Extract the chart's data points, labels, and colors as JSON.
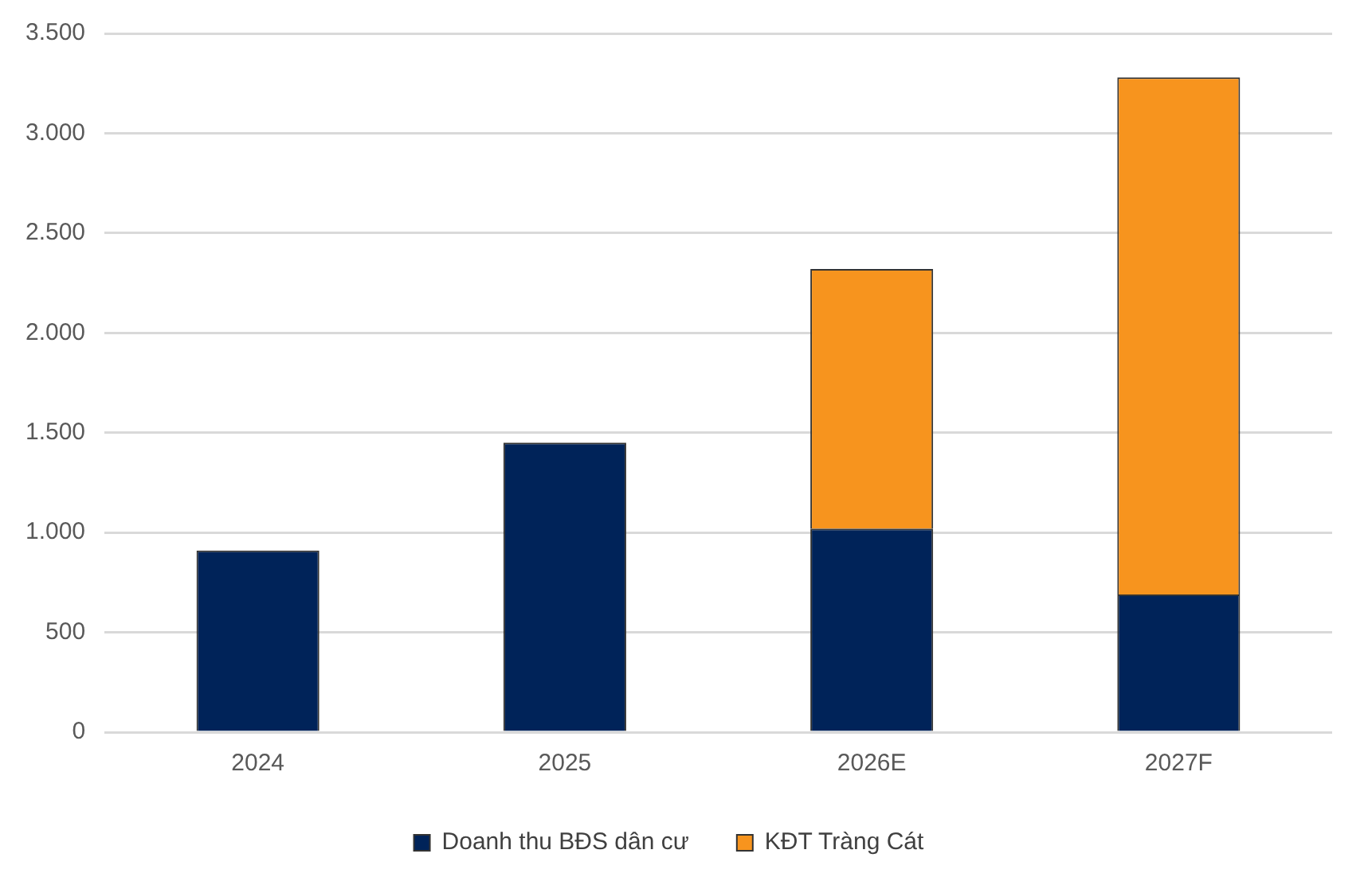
{
  "chart_data": {
    "type": "bar",
    "categories": [
      "2024",
      "2025",
      "2026E",
      "2027F"
    ],
    "stacked": true,
    "series": [
      {
        "name": "Doanh thu BĐS dân cư",
        "color": "#002359",
        "values": [
          910,
          1450,
          1020,
          690
        ]
      },
      {
        "name": "KĐT Tràng Cát",
        "color": "#f7941e",
        "values": [
          null,
          null,
          1300,
          2590
        ]
      }
    ],
    "ylim": [
      0,
      3500
    ],
    "yticks": [
      0,
      {
        "value": 500,
        "label": "500"
      },
      {
        "value": 1000,
        "label": "1.000"
      },
      {
        "value": 1500,
        "label": "1.500"
      },
      {
        "value": 2000,
        "label": "2.000"
      },
      {
        "value": 2500,
        "label": "2.500"
      },
      {
        "value": 3000,
        "label": "3.000"
      },
      {
        "value": 3500,
        "label": "3.500"
      }
    ],
    "grid": "y",
    "legend": "bottom"
  }
}
